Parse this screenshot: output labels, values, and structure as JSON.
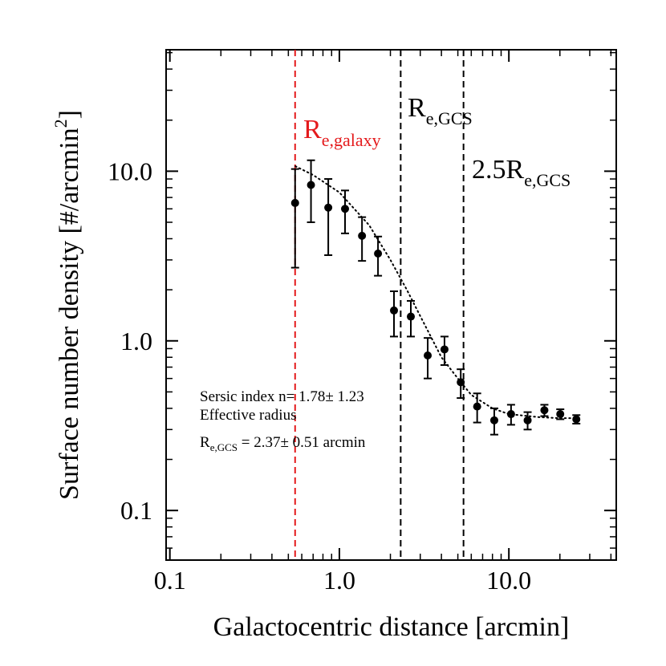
{
  "chart_data": {
    "type": "scatter",
    "xlabel": "Galactocentric distance [arcmin]",
    "ylabel": {
      "text": "Surface number density [#/arcmin",
      "sup": "2",
      "after": "]"
    },
    "xscale": "log",
    "yscale": "log",
    "xlim": [
      0.095,
      43
    ],
    "ylim": [
      0.051,
      52
    ],
    "xticks": [
      0.1,
      {
        "value": 1,
        "label": "1.0"
      },
      {
        "value": 10,
        "label": "10.0"
      }
    ],
    "yticks": [
      0.1,
      {
        "value": 1,
        "label": "1.0"
      },
      {
        "value": 10,
        "label": "10.0"
      }
    ],
    "xminorticks": [
      0.2,
      0.3,
      0.4,
      0.5,
      0.6,
      0.7,
      0.8,
      0.9,
      2,
      3,
      4,
      5,
      6,
      7,
      8,
      9,
      20,
      30,
      40
    ],
    "yminorticks": [
      0.06,
      0.07,
      0.08,
      0.09,
      0.2,
      0.3,
      0.4,
      0.5,
      0.6,
      0.7,
      0.8,
      0.9,
      2,
      3,
      4,
      5,
      6,
      7,
      8,
      9,
      20,
      30,
      40,
      50
    ],
    "color": "#000000",
    "x": [
      0.548,
      0.68,
      0.86,
      1.08,
      1.36,
      1.69,
      2.1,
      2.64,
      3.32,
      4.17,
      5.2,
      6.5,
      8.2,
      10.3,
      12.9,
      16.2,
      20.1,
      25.0
    ],
    "y": [
      6.5,
      8.3,
      6.1,
      6.0,
      4.16,
      3.27,
      1.51,
      1.39,
      0.82,
      0.89,
      0.57,
      0.41,
      0.34,
      0.37,
      0.34,
      0.39,
      0.37,
      0.345
    ],
    "yerr": [
      3.8,
      3.3,
      2.9,
      1.7,
      1.2,
      0.85,
      0.45,
      0.33,
      0.22,
      0.17,
      0.11,
      0.08,
      0.06,
      0.05,
      0.04,
      0.03,
      0.025,
      0.02
    ],
    "fit": {
      "x": [
        0.55,
        0.7,
        1,
        1.5,
        2,
        2.5,
        3,
        4,
        5,
        6,
        8,
        10,
        15,
        20,
        26
      ],
      "y": [
        10.7,
        9.5,
        7.5,
        4.8,
        3.0,
        2.0,
        1.4,
        0.8,
        0.6,
        0.48,
        0.4,
        0.37,
        0.355,
        0.35,
        0.35
      ]
    },
    "vlines": [
      {
        "x": 0.548,
        "color": "#e41a1c",
        "label": {
          "text": "R",
          "sub": "e,galaxy"
        }
      },
      {
        "x": 2.3,
        "color": "#000000",
        "label": {
          "text": "R",
          "sub": "e,GCS"
        }
      },
      {
        "x": 5.4,
        "color": "#000000",
        "label": {
          "text": "2.5R",
          "sub": "e,GCS"
        }
      }
    ],
    "annotations": [
      "Sersic index n= 1.78± 1.23",
      "Effective radius",
      {
        "text": "R",
        "sub": "e,GCS",
        "after": " = 2.37± 0.51 arcmin"
      }
    ]
  }
}
